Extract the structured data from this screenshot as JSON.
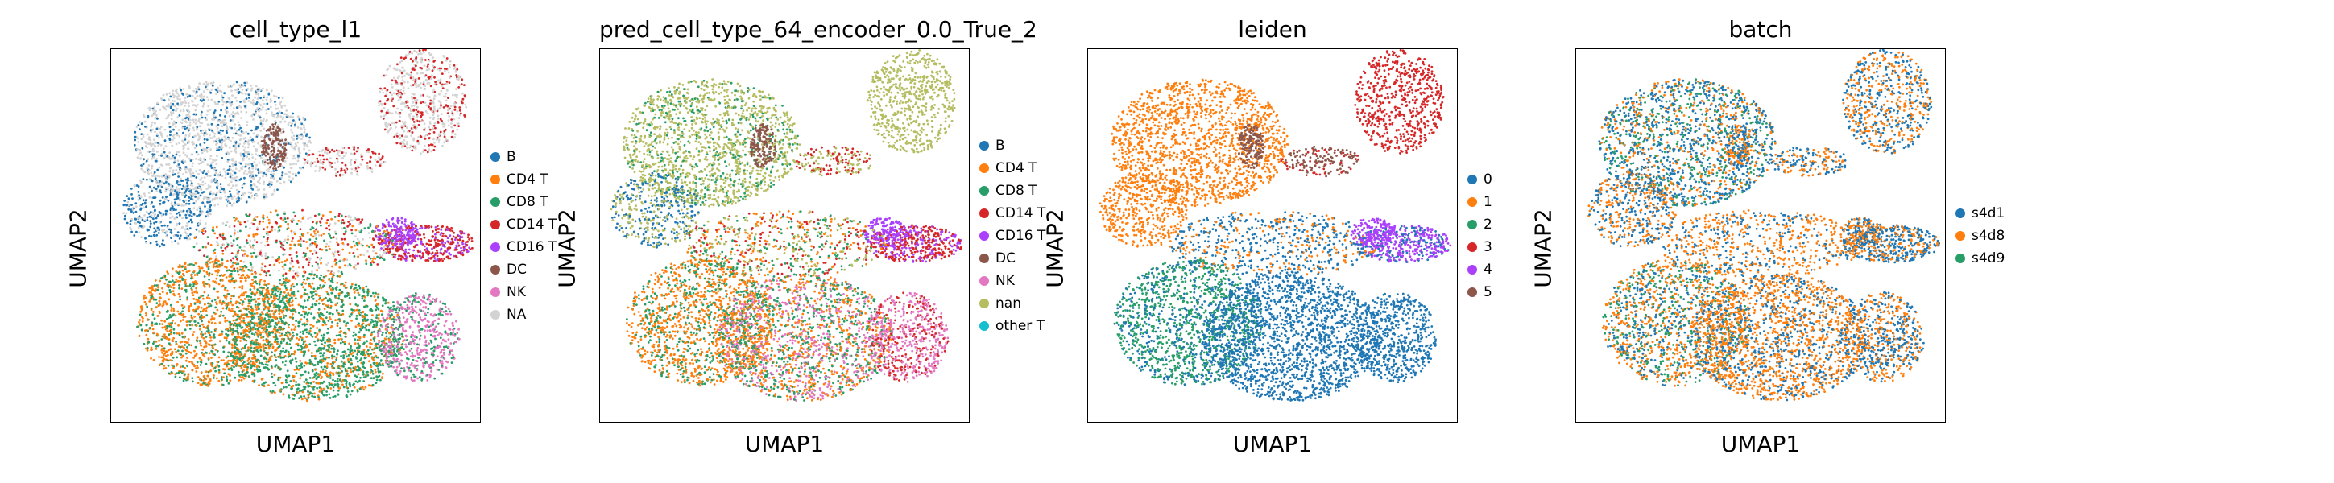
{
  "chart_data": [
    {
      "type": "scatter",
      "title": "cell_type_l1",
      "xlabel": "UMAP1",
      "ylabel": "UMAP2",
      "legend_placement": "right",
      "grid": false,
      "legend": [
        {
          "label": "B",
          "color": "#1f77b4"
        },
        {
          "label": "CD4 T",
          "color": "#ff7f0e"
        },
        {
          "label": "CD8 T",
          "color": "#279e68"
        },
        {
          "label": "CD14 T",
          "color": "#d62728"
        },
        {
          "label": "CD16 T",
          "color": "#aa40fc"
        },
        {
          "label": "DC",
          "color": "#8c564b"
        },
        {
          "label": "NK",
          "color": "#e377c2"
        },
        {
          "label": "NA",
          "color": "#d3d3d3"
        }
      ]
    },
    {
      "type": "scatter",
      "title": "pred_cell_type_64_encoder_0.0_True_2",
      "xlabel": "UMAP1",
      "ylabel": "UMAP2",
      "legend_placement": "right",
      "grid": false,
      "legend": [
        {
          "label": "B",
          "color": "#1f77b4"
        },
        {
          "label": "CD4 T",
          "color": "#ff7f0e"
        },
        {
          "label": "CD8 T",
          "color": "#279e68"
        },
        {
          "label": "CD14 T",
          "color": "#d62728"
        },
        {
          "label": "CD16 T",
          "color": "#aa40fc"
        },
        {
          "label": "DC",
          "color": "#8c564b"
        },
        {
          "label": "NK",
          "color": "#e377c2"
        },
        {
          "label": "nan",
          "color": "#b5bd61"
        },
        {
          "label": "other T",
          "color": "#17becf"
        }
      ]
    },
    {
      "type": "scatter",
      "title": "leiden",
      "xlabel": "UMAP1",
      "ylabel": "UMAP2",
      "legend_placement": "right",
      "grid": false,
      "legend": [
        {
          "label": "0",
          "color": "#1f77b4"
        },
        {
          "label": "1",
          "color": "#ff7f0e"
        },
        {
          "label": "2",
          "color": "#279e68"
        },
        {
          "label": "3",
          "color": "#d62728"
        },
        {
          "label": "4",
          "color": "#aa40fc"
        },
        {
          "label": "5",
          "color": "#8c564b"
        }
      ]
    },
    {
      "type": "scatter",
      "title": "batch",
      "xlabel": "UMAP1",
      "ylabel": "UMAP2",
      "legend_placement": "right",
      "grid": false,
      "legend": [
        {
          "label": "s4d1",
          "color": "#1f77b4"
        },
        {
          "label": "s4d8",
          "color": "#ff7f0e"
        },
        {
          "label": "s4d9",
          "color": "#279e68"
        }
      ]
    }
  ]
}
